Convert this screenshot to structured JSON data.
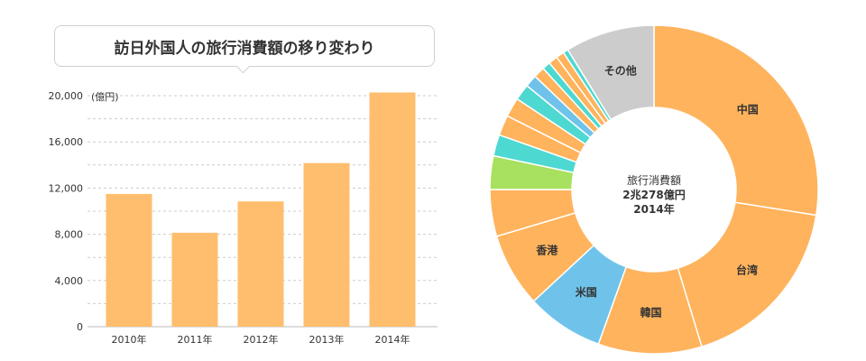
{
  "chart_data": [
    {
      "type": "bar",
      "title": "訪日外国人の旅行消費額の移り変わり",
      "ylabel": "(億円)",
      "xlabel": "",
      "categories": [
        "2010年",
        "2011年",
        "2012年",
        "2013年",
        "2014年"
      ],
      "values": [
        11490,
        8135,
        10846,
        14167,
        20278
      ],
      "ylim": [
        0,
        20000
      ],
      "yticks": [
        0,
        4000,
        8000,
        12000,
        16000,
        20000
      ],
      "ytick_labels": [
        "0",
        "4,000",
        "8,000",
        "12,000",
        "16,000",
        "20,000"
      ],
      "grid": true,
      "bar_color": "#ffbe6e"
    },
    {
      "type": "pie",
      "style": "donut",
      "center_label": [
        "旅行消費額",
        "2兆278億円",
        "2014年"
      ],
      "slices": [
        {
          "label": "中国",
          "value": 27.5,
          "color": "#ffb35c"
        },
        {
          "label": "台湾",
          "value": 17.8,
          "color": "#ffb35c"
        },
        {
          "label": "韓国",
          "value": 10.2,
          "color": "#ffb35c"
        },
        {
          "label": "米国",
          "value": 7.6,
          "color": "#6fc3ea"
        },
        {
          "label": "香港",
          "value": 7.3,
          "color": "#ffb35c"
        },
        {
          "label": "",
          "value": 4.6,
          "color": "#ffb35c"
        },
        {
          "label": "",
          "value": 3.3,
          "color": "#a8e05f"
        },
        {
          "label": "",
          "value": 2.1,
          "color": "#4dd8d1"
        },
        {
          "label": "",
          "value": 2.0,
          "color": "#ffb35c"
        },
        {
          "label": "",
          "value": 1.9,
          "color": "#ffb35c"
        },
        {
          "label": "",
          "value": 1.6,
          "color": "#4dd8d1"
        },
        {
          "label": "",
          "value": 1.2,
          "color": "#6fc3ea"
        },
        {
          "label": "",
          "value": 1.1,
          "color": "#ffb35c"
        },
        {
          "label": "",
          "value": 0.8,
          "color": "#4dd8d1"
        },
        {
          "label": "",
          "value": 0.9,
          "color": "#ffb35c"
        },
        {
          "label": "",
          "value": 0.8,
          "color": "#ffb35c"
        },
        {
          "label": "",
          "value": 0.5,
          "color": "#4dd8d1"
        },
        {
          "label": "その他",
          "value": 8.8,
          "color": "#cccccc"
        }
      ]
    }
  ]
}
